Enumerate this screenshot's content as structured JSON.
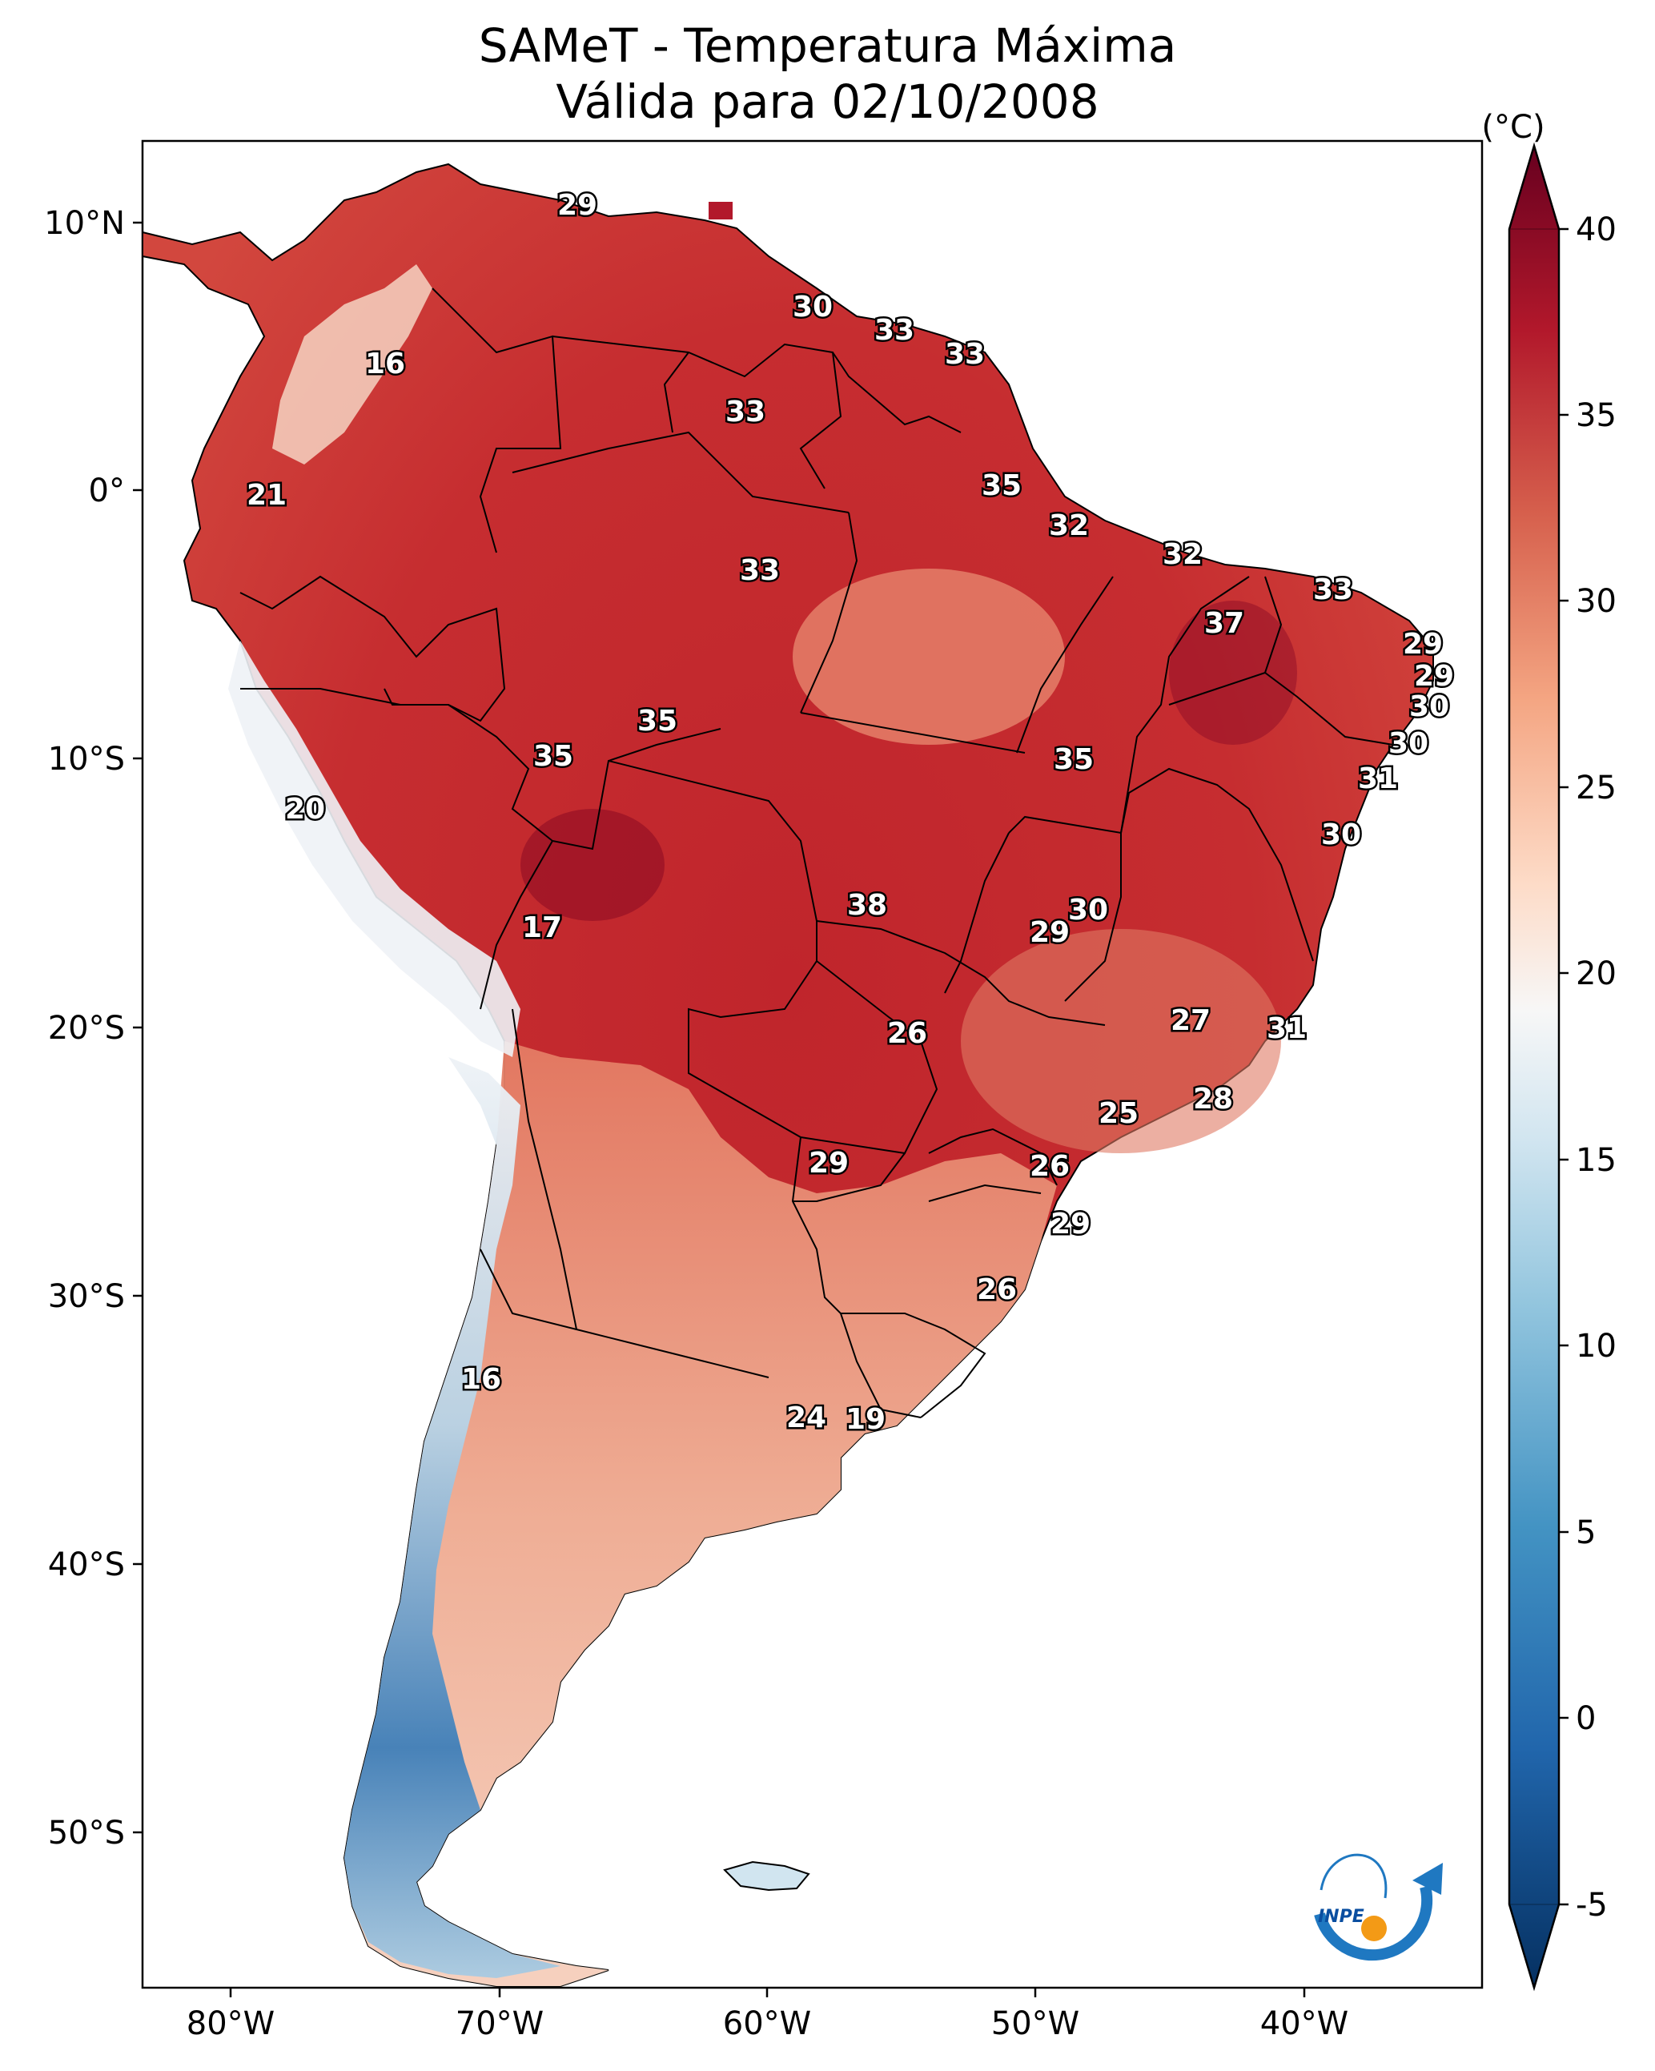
{
  "title": {
    "line1": "SAMeT - Temperatura Máxima",
    "line2": "Válida para 02/10/2008"
  },
  "colorbar": {
    "unit": "(°C)",
    "ticks": [
      "40",
      "35",
      "30",
      "25",
      "20",
      "15",
      "10",
      "5",
      "0",
      "-5"
    ],
    "min": -5,
    "max": 40,
    "colors": [
      "#053061",
      "#2166ac",
      "#4393c3",
      "#92c5de",
      "#d1e5f0",
      "#f7f7f7",
      "#fddbc7",
      "#f4a582",
      "#d6604d",
      "#b2182b",
      "#67001f"
    ]
  },
  "axes": {
    "lat_ticks": [
      "10°N",
      "0°",
      "10°S",
      "20°S",
      "30°S",
      "40°S",
      "50°S"
    ],
    "lon_ticks": [
      "80°W",
      "70°W",
      "60°W",
      "50°W",
      "40°W"
    ]
  },
  "station_values": [
    {
      "id": "s1",
      "value": "29"
    },
    {
      "id": "s2",
      "value": "16"
    },
    {
      "id": "s3",
      "value": "30"
    },
    {
      "id": "s4",
      "value": "33"
    },
    {
      "id": "s5",
      "value": "33"
    },
    {
      "id": "s6",
      "value": "33"
    },
    {
      "id": "s7",
      "value": "21"
    },
    {
      "id": "s8",
      "value": "35"
    },
    {
      "id": "s9",
      "value": "32"
    },
    {
      "id": "s10",
      "value": "33"
    },
    {
      "id": "s11",
      "value": "32"
    },
    {
      "id": "s12",
      "value": "33"
    },
    {
      "id": "s13",
      "value": "37"
    },
    {
      "id": "s14",
      "value": "29"
    },
    {
      "id": "s15",
      "value": "29"
    },
    {
      "id": "s16",
      "value": "30"
    },
    {
      "id": "s17",
      "value": "35"
    },
    {
      "id": "s18",
      "value": "35"
    },
    {
      "id": "s19",
      "value": "35"
    },
    {
      "id": "s20",
      "value": "30"
    },
    {
      "id": "s21",
      "value": "31"
    },
    {
      "id": "s22",
      "value": "20"
    },
    {
      "id": "s23",
      "value": "30"
    },
    {
      "id": "s24",
      "value": "38"
    },
    {
      "id": "s25",
      "value": "30"
    },
    {
      "id": "s26",
      "value": "29"
    },
    {
      "id": "s27",
      "value": "17"
    },
    {
      "id": "s28",
      "value": "27"
    },
    {
      "id": "s29",
      "value": "31"
    },
    {
      "id": "s30",
      "value": "26"
    },
    {
      "id": "s31",
      "value": "28"
    },
    {
      "id": "s32",
      "value": "25"
    },
    {
      "id": "s33",
      "value": "29"
    },
    {
      "id": "s34",
      "value": "26"
    },
    {
      "id": "s35",
      "value": "29"
    },
    {
      "id": "s36",
      "value": "26"
    },
    {
      "id": "s37",
      "value": "16"
    },
    {
      "id": "s38",
      "value": "24"
    },
    {
      "id": "s39",
      "value": "19"
    }
  ],
  "logo": {
    "text": "INPE"
  }
}
